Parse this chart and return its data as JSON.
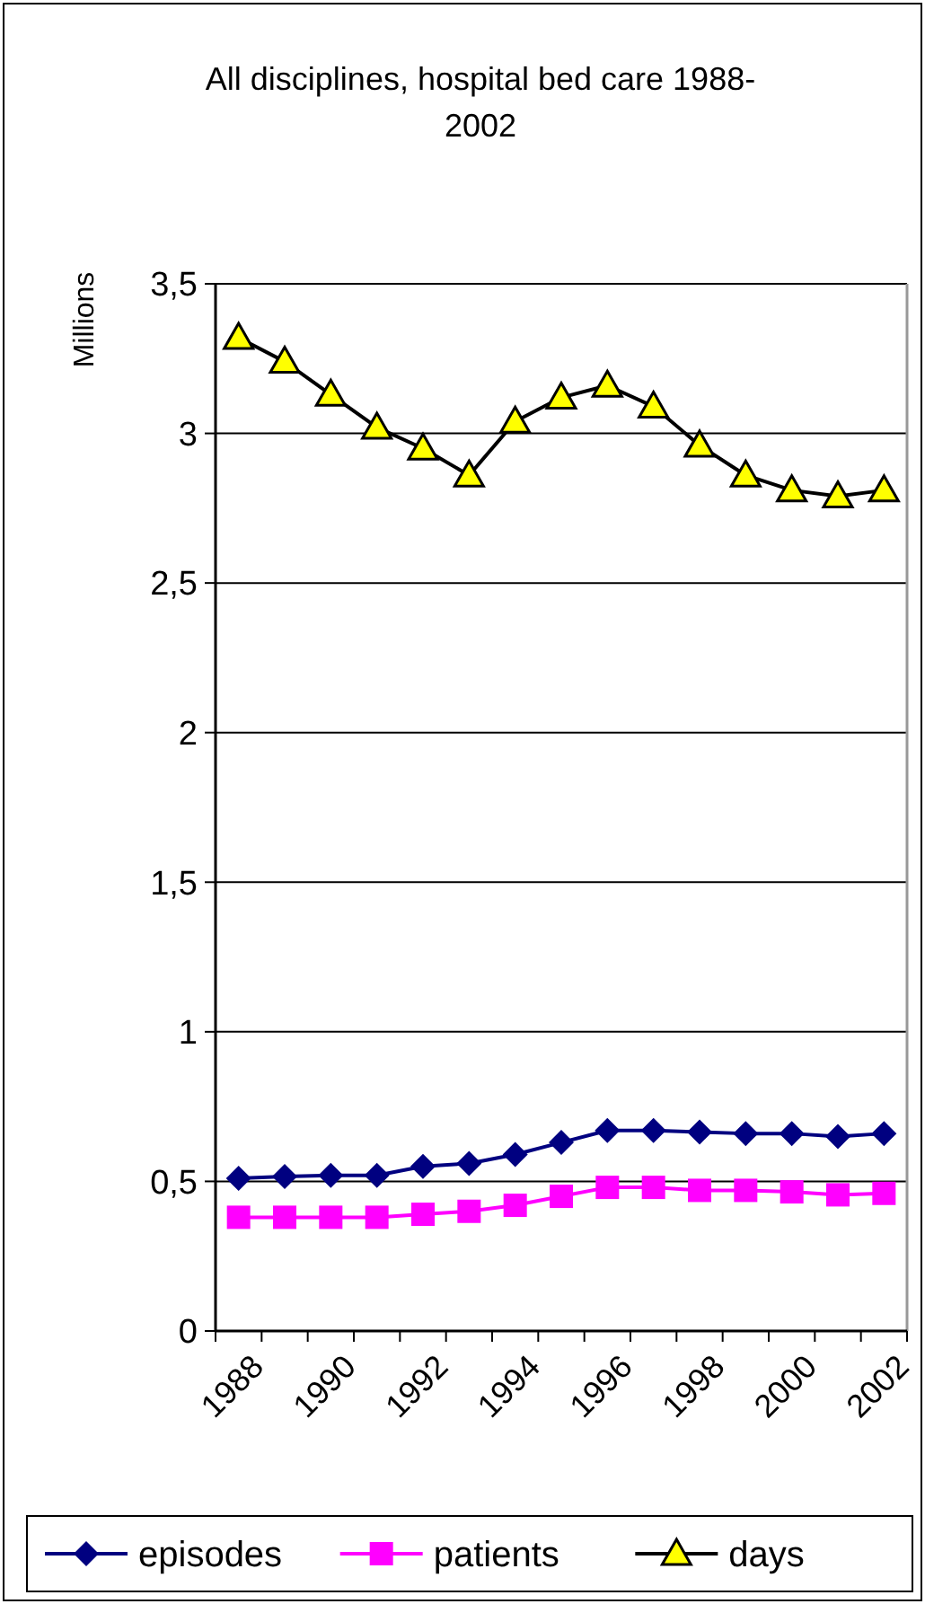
{
  "chart_data": {
    "type": "line",
    "title": "All disciplines, hospital bed care 1988-2002",
    "ylabel": "Millions",
    "categories": [
      "1988",
      null,
      "1990",
      null,
      "1992",
      null,
      "1994",
      null,
      "1996",
      null,
      "1998",
      null,
      "2000",
      null,
      "2002"
    ],
    "series": [
      {
        "name": "episodes",
        "color": "#000080",
        "marker": "diamond",
        "values": [
          0.51,
          0.516,
          0.52,
          0.52,
          0.55,
          0.56,
          0.59,
          0.63,
          0.67,
          0.67,
          0.665,
          0.66,
          0.66,
          0.65,
          0.66
        ]
      },
      {
        "name": "patients",
        "color": "#ff00ff",
        "marker": "square",
        "values": [
          0.38,
          0.38,
          0.38,
          0.38,
          0.39,
          0.4,
          0.42,
          0.45,
          0.48,
          0.48,
          0.47,
          0.47,
          0.465,
          0.455,
          0.46
        ]
      },
      {
        "name": "days",
        "color": "#000000",
        "marker": "triangle",
        "values": [
          3.32,
          3.24,
          3.13,
          3.02,
          2.95,
          2.86,
          3.04,
          3.12,
          3.16,
          3.09,
          2.96,
          2.86,
          2.81,
          2.79,
          2.81
        ]
      }
    ],
    "ylim": [
      0,
      3.5
    ],
    "yticks": [
      0,
      {
        "value": 0.5,
        "label": "0,5"
      },
      1,
      {
        "value": 1.5,
        "label": "1,5"
      },
      2,
      {
        "value": 2.5,
        "label": "2,5"
      },
      3,
      {
        "value": 3.5,
        "label": "3,5"
      }
    ],
    "grid": "y",
    "legend": "bottom"
  }
}
